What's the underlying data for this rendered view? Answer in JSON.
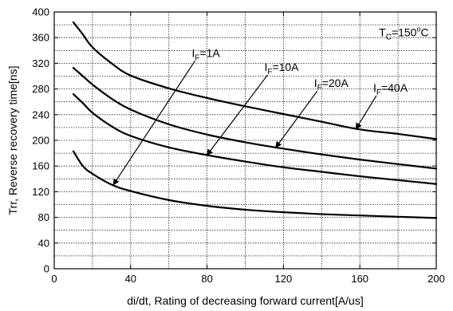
{
  "chart_data": {
    "type": "line",
    "title": "",
    "xlabel": "di/dt, Rating of decreasing forward current[A/us]",
    "ylabel": "Trr, Reverse recovery time[ns]",
    "xlim": [
      0,
      200
    ],
    "ylim": [
      0,
      400
    ],
    "x_ticks": [
      0,
      40,
      80,
      120,
      160,
      200
    ],
    "y_ticks": [
      0,
      40,
      80,
      120,
      160,
      200,
      240,
      280,
      320,
      360,
      400
    ],
    "grid": true,
    "condition": {
      "prefix": "T",
      "sub": "C",
      "value": "=150",
      "sup": "o",
      "unit": "C"
    },
    "series": [
      {
        "name": "IF=1A",
        "label_main": "I",
        "label_sub": "F",
        "label_value": "=1A",
        "x": [
          10,
          15,
          20,
          30,
          40,
          60,
          80,
          100,
          120,
          140,
          160,
          180,
          200
        ],
        "y": [
          183,
          160,
          148,
          131,
          121,
          107,
          98,
          92,
          88,
          85,
          83,
          81,
          79
        ]
      },
      {
        "name": "IF=10A",
        "label_main": "I",
        "label_sub": "F",
        "label_value": "=10A",
        "x": [
          10,
          15,
          20,
          30,
          40,
          60,
          80,
          100,
          120,
          140,
          160,
          180,
          200
        ],
        "y": [
          272,
          258,
          243,
          222,
          207,
          189,
          177,
          167,
          158,
          151,
          144,
          138,
          132
        ]
      },
      {
        "name": "IF=20A",
        "label_main": "I",
        "label_sub": "F",
        "label_value": "=20A",
        "x": [
          10,
          15,
          20,
          30,
          40,
          60,
          80,
          100,
          120,
          140,
          160,
          180,
          200
        ],
        "y": [
          313,
          300,
          287,
          265,
          248,
          225,
          209,
          197,
          187,
          178,
          170,
          163,
          156
        ]
      },
      {
        "name": "IF=40A",
        "label_main": "I",
        "label_sub": "F",
        "label_value": "=40A",
        "x": [
          10,
          15,
          20,
          30,
          40,
          60,
          80,
          100,
          120,
          140,
          160,
          180,
          200
        ],
        "y": [
          384,
          365,
          345,
          320,
          301,
          281,
          266,
          253,
          241,
          229,
          217,
          210,
          202
        ]
      }
    ],
    "annotations": [
      {
        "series": 0,
        "text_x": 72,
        "text_y": 330,
        "arrow_x": 31,
        "arrow_y": 131
      },
      {
        "series": 1,
        "text_x": 110,
        "text_y": 308,
        "arrow_x": 80,
        "arrow_y": 177
      },
      {
        "series": 2,
        "text_x": 136,
        "text_y": 283,
        "arrow_x": 116,
        "arrow_y": 189
      },
      {
        "series": 3,
        "text_x": 167,
        "text_y": 276,
        "arrow_x": 158,
        "arrow_y": 218
      }
    ],
    "condition_pos": {
      "x": 170,
      "y": 362
    }
  }
}
